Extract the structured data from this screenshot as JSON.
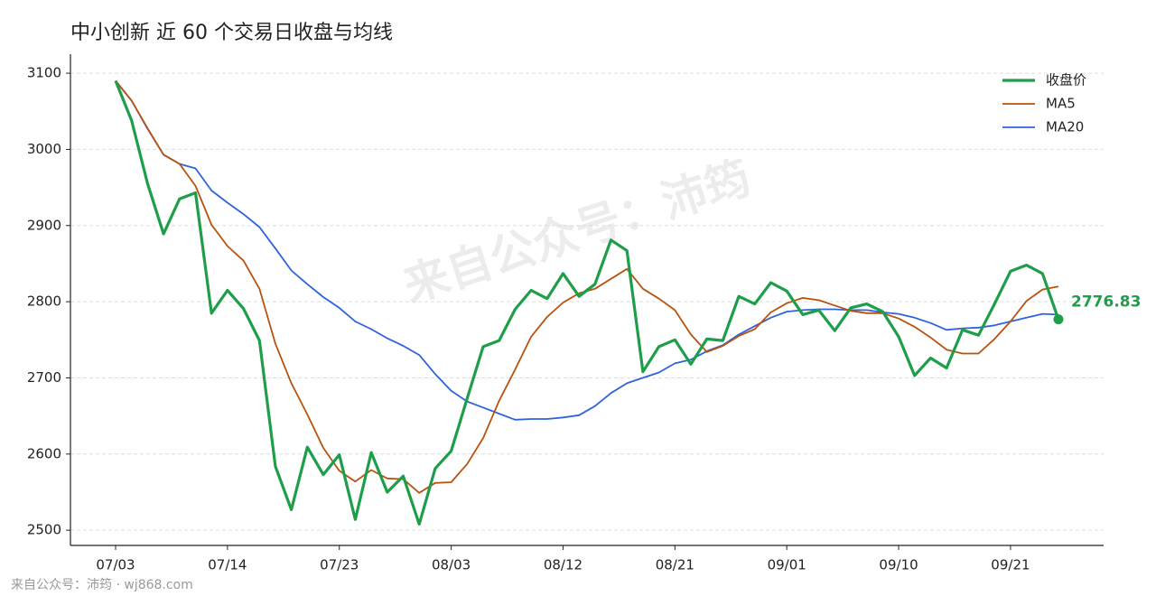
{
  "chart_data": {
    "type": "line",
    "title": "中小创新 近 60 个交易日收盘与均线",
    "watermark": "来自公众号：沛筠",
    "footer": "来自公众号：沛筠 · wj868.com",
    "categories": [
      "07/03",
      null,
      null,
      null,
      null,
      null,
      null,
      "07/14",
      null,
      null,
      null,
      null,
      null,
      null,
      "07/23",
      null,
      null,
      null,
      null,
      null,
      null,
      "08/03",
      null,
      null,
      null,
      null,
      null,
      null,
      "08/12",
      null,
      null,
      null,
      null,
      null,
      null,
      "08/21",
      null,
      null,
      null,
      null,
      null,
      null,
      "09/01",
      null,
      null,
      null,
      null,
      null,
      null,
      "09/10",
      null,
      null,
      null,
      null,
      null,
      null,
      "09/21",
      null,
      null,
      null
    ],
    "ylim": [
      2480,
      3125
    ],
    "yticks": [
      2500,
      2600,
      2700,
      2800,
      2900,
      3000,
      3100
    ],
    "grid": true,
    "legend": "upper right",
    "series": [
      {
        "name": "收盘价",
        "color": "#1f9e4a",
        "width": 3.2,
        "values": [
          3090,
          3038,
          2955,
          2889,
          2935,
          2943,
          2785,
          2815,
          2791,
          2749,
          2584,
          2527,
          2609,
          2573,
          2599,
          2514,
          2602,
          2550,
          2571,
          2508,
          2581,
          2604,
          2673,
          2741,
          2749,
          2790,
          2815,
          2804,
          2837,
          2807,
          2823,
          2881,
          2867,
          2708,
          2741,
          2750,
          2718,
          2751,
          2749,
          2807,
          2797,
          2825,
          2814,
          2783,
          2789,
          2762,
          2792,
          2797,
          2787,
          2754,
          2703,
          2726,
          2713,
          2763,
          2756,
          2797,
          2840,
          2848,
          2837,
          2776.83
        ]
      },
      {
        "name": "MA5",
        "color": "#b8530f",
        "width": 1.8,
        "values": [
          3090,
          3064,
          3027.7,
          2993,
          2981,
          2952,
          2901,
          2873,
          2854,
          2817,
          2745,
          2693,
          2652,
          2608,
          2578,
          2564,
          2579,
          2568,
          2567,
          2549,
          2562,
          2563,
          2587,
          2621,
          2670,
          2711,
          2754,
          2780,
          2799,
          2811,
          2817,
          2830,
          2843,
          2817,
          2804,
          2789,
          2757,
          2734,
          2742,
          2755,
          2764,
          2786,
          2798,
          2805,
          2802,
          2795,
          2788,
          2785,
          2785,
          2778,
          2767,
          2753,
          2737,
          2732,
          2732,
          2751,
          2774,
          2801,
          2816,
          2820
        ]
      },
      {
        "name": "MA20",
        "color": "#2f63db",
        "width": 1.8,
        "values": [
          3090,
          3064,
          3027,
          2993,
          2981,
          2975,
          2946,
          2930,
          2915,
          2898,
          2870,
          2841,
          2823,
          2806,
          2792,
          2774,
          2764,
          2752,
          2742,
          2730,
          2705,
          2683,
          2669,
          2661,
          2653,
          2645,
          2646,
          2646,
          2648,
          2651,
          2663,
          2680,
          2693,
          2700,
          2707,
          2719,
          2724,
          2735,
          2743,
          2757,
          2768,
          2779,
          2787,
          2789,
          2790,
          2790,
          2789,
          2789,
          2786,
          2784,
          2779,
          2772,
          2763,
          2765,
          2766,
          2769,
          2774,
          2779,
          2784,
          2783
        ]
      }
    ]
  }
}
